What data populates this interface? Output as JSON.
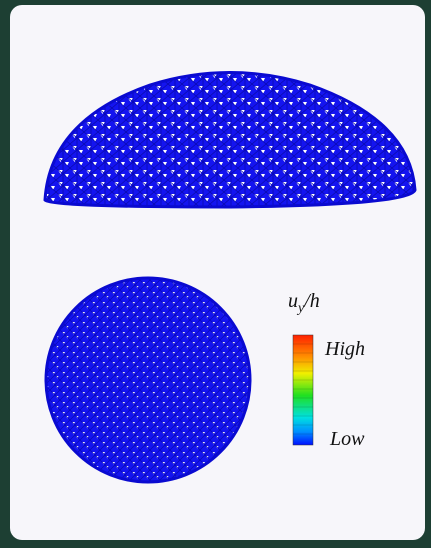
{
  "legend": {
    "label": {
      "symbol": "u",
      "subscript": "y",
      "rest": "/h"
    },
    "high": "High",
    "low": "Low"
  }
}
